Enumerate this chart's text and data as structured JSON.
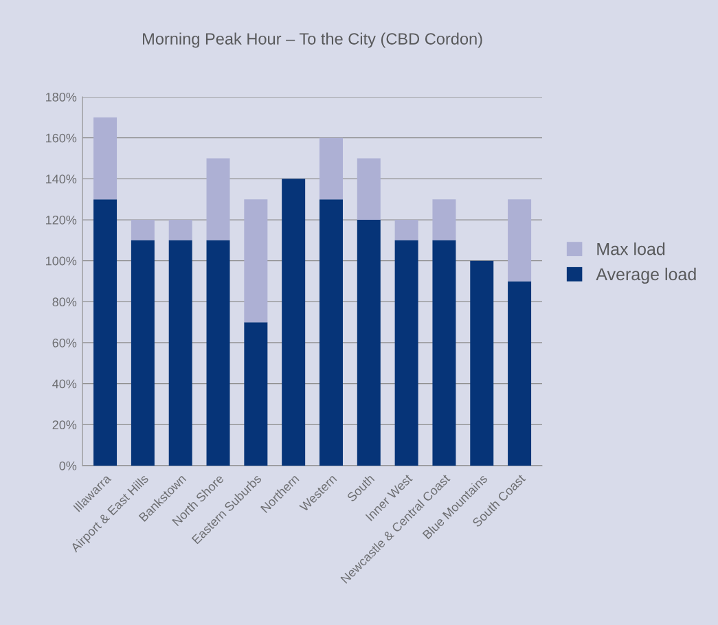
{
  "chart_data": {
    "type": "bar",
    "title": "Morning Peak Hour – To the City (CBD Cordon)",
    "categories": [
      "Illawarra",
      "Airport & East Hills",
      "Bankstown",
      "North Shore",
      "Eastern Suburbs",
      "Northern",
      "Western",
      "South",
      "Inner West",
      "Newcastle & Central Coast",
      "Blue Mountains",
      "South Coast"
    ],
    "stacked": true,
    "series": [
      {
        "name": "Average load",
        "color": "#063478",
        "values": [
          130,
          110,
          110,
          110,
          70,
          140,
          130,
          120,
          110,
          110,
          100,
          90
        ]
      },
      {
        "name": "Max load",
        "color": "#adb0d4",
        "values": [
          40,
          10,
          10,
          40,
          60,
          0,
          30,
          30,
          10,
          20,
          0,
          40
        ]
      }
    ],
    "ylim": [
      0,
      180
    ],
    "yticks": [
      {
        "value": 0,
        "label": "0%"
      },
      {
        "value": 20,
        "label": "20%"
      },
      {
        "value": 40,
        "label": "40%"
      },
      {
        "value": 60,
        "label": "60%"
      },
      {
        "value": 80,
        "label": "80%"
      },
      {
        "value": 100,
        "label": "100%"
      },
      {
        "value": 120,
        "label": "120%"
      },
      {
        "value": 140,
        "label": "140%"
      },
      {
        "value": 160,
        "label": "160%"
      },
      {
        "value": 180,
        "label": "180%"
      }
    ],
    "grid": "y",
    "legend": "right"
  }
}
